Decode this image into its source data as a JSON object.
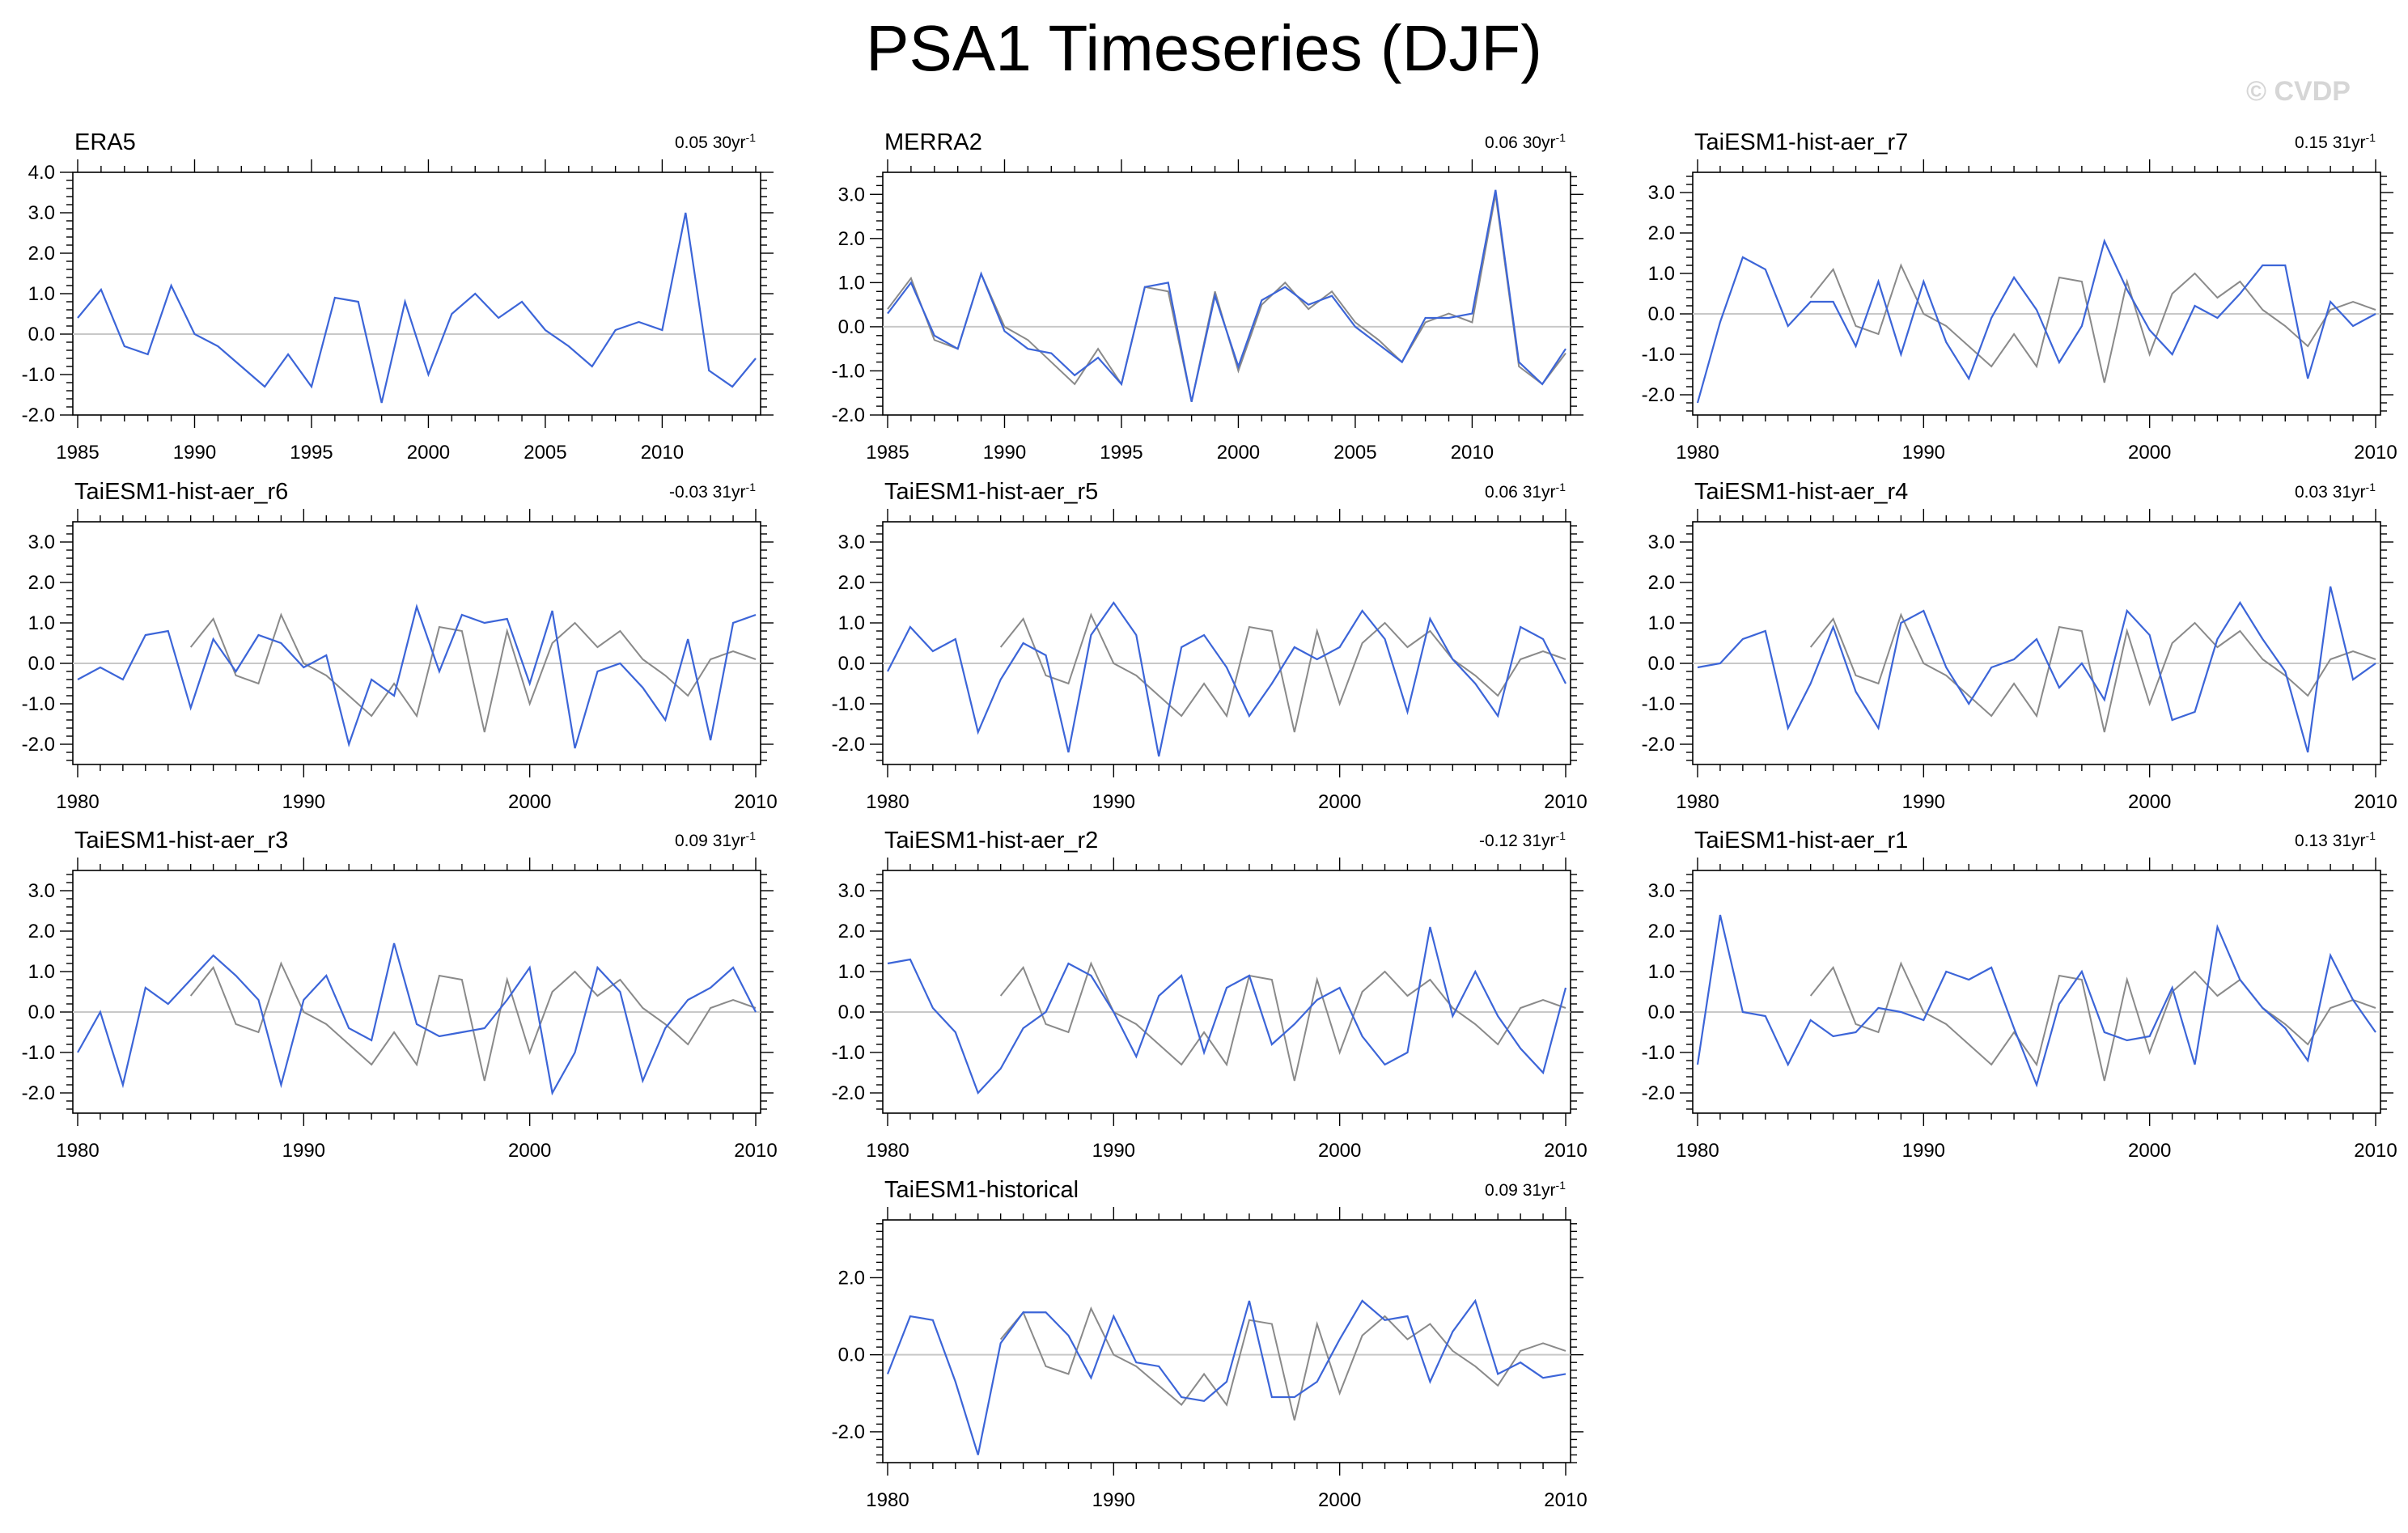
{
  "title": "PSA1 Timeseries (DJF)",
  "watermark": "© CVDP",
  "colors": {
    "model_line": "#3c65d8",
    "obs_line": "#8a8a8a",
    "zero_line": "#c8c8c8",
    "axis": "#000000"
  },
  "reference_series": {
    "name": "ERA5",
    "x": [
      1985,
      1986,
      1987,
      1988,
      1989,
      1990,
      1991,
      1992,
      1993,
      1994,
      1995,
      1996,
      1997,
      1998,
      1999,
      2000,
      2001,
      2002,
      2003,
      2004,
      2005,
      2006,
      2007,
      2008,
      2009,
      2010,
      2011,
      2012,
      2013,
      2014
    ],
    "values": [
      0.4,
      1.1,
      -0.3,
      -0.5,
      1.2,
      0.0,
      -0.3,
      -0.8,
      -1.3,
      -0.5,
      -1.3,
      0.9,
      0.8,
      -1.7,
      0.8,
      -1.0,
      0.5,
      1.0,
      0.4,
      0.8,
      0.1,
      -0.3,
      -0.8,
      0.1,
      0.3,
      0.1,
      3.0,
      -0.9,
      -1.3,
      -0.6
    ]
  },
  "chart_data": [
    {
      "type": "line",
      "title": "ERA5",
      "trend_value": "0.05",
      "trend_period": "30yr",
      "trend_exp": "-1",
      "xlim": [
        1985,
        2014
      ],
      "ylim": [
        -2.0,
        4.0
      ],
      "xticks": [
        1985,
        1990,
        1995,
        2000,
        2005,
        2010
      ],
      "yticks": [
        4.0,
        3.0,
        2.0,
        1.0,
        0.0,
        -1.0,
        -2.0
      ],
      "xtick_labels": [
        "1985",
        "1990",
        "1995",
        "2000",
        "2005",
        "2010"
      ],
      "ytick_labels": [
        "4.0",
        "3.0",
        "2.0",
        "1.0",
        "0.0",
        "-1.0",
        "-2.0"
      ],
      "show_obs": false,
      "x_start": 1985,
      "values": [
        0.4,
        1.1,
        -0.3,
        -0.5,
        1.2,
        0.0,
        -0.3,
        -0.8,
        -1.3,
        -0.5,
        -1.3,
        0.9,
        0.8,
        -1.7,
        0.8,
        -1.0,
        0.5,
        1.0,
        0.4,
        0.8,
        0.1,
        -0.3,
        -0.8,
        0.1,
        0.3,
        0.1,
        3.0,
        -0.9,
        -1.3,
        -0.6
      ]
    },
    {
      "type": "line",
      "title": "MERRA2",
      "trend_value": "0.06",
      "trend_period": "30yr",
      "trend_exp": "-1",
      "xlim": [
        1985,
        2014
      ],
      "ylim": [
        -2.0,
        3.5
      ],
      "xticks": [
        1985,
        1990,
        1995,
        2000,
        2005,
        2010
      ],
      "yticks": [
        3.0,
        2.0,
        1.0,
        0.0,
        -1.0,
        -2.0
      ],
      "xtick_labels": [
        "1985",
        "1990",
        "1995",
        "2000",
        "2005",
        "2010"
      ],
      "ytick_labels": [
        "3.0",
        "2.0",
        "1.0",
        "0.0",
        "-1.0",
        "-2.0"
      ],
      "show_obs": true,
      "x_start": 1985,
      "values": [
        0.3,
        1.0,
        -0.2,
        -0.5,
        1.2,
        -0.1,
        -0.5,
        -0.6,
        -1.1,
        -0.7,
        -1.3,
        0.9,
        1.0,
        -1.7,
        0.7,
        -0.9,
        0.6,
        0.9,
        0.5,
        0.7,
        0.0,
        -0.4,
        -0.8,
        0.2,
        0.2,
        0.3,
        3.1,
        -0.8,
        -1.3,
        -0.5
      ]
    },
    {
      "type": "line",
      "title": "TaiESM1-hist-aer_r7",
      "trend_value": "0.15",
      "trend_period": "31yr",
      "trend_exp": "-1",
      "xlim": [
        1980,
        2010
      ],
      "ylim": [
        -2.5,
        3.5
      ],
      "xticks": [
        1980,
        1990,
        2000,
        2010
      ],
      "yticks": [
        3.0,
        2.0,
        1.0,
        0.0,
        -1.0,
        -2.0
      ],
      "xtick_labels": [
        "1980",
        "1990",
        "2000",
        "2010"
      ],
      "ytick_labels": [
        "3.0",
        "2.0",
        "1.0",
        "0.0",
        "-1.0",
        "-2.0"
      ],
      "show_obs": true,
      "x_start": 1980,
      "values": [
        -2.2,
        -0.2,
        1.4,
        1.1,
        -0.3,
        0.3,
        0.3,
        -0.8,
        0.8,
        -1.0,
        0.8,
        -0.7,
        -1.6,
        -0.1,
        0.9,
        0.1,
        -1.2,
        -0.3,
        1.8,
        0.6,
        -0.4,
        -1.0,
        0.2,
        -0.1,
        0.5,
        1.2,
        1.2,
        -1.6,
        0.3,
        -0.3,
        0.0
      ]
    },
    {
      "type": "line",
      "title": "TaiESM1-hist-aer_r6",
      "trend_value": "-0.03",
      "trend_period": "31yr",
      "trend_exp": "-1",
      "xlim": [
        1980,
        2010
      ],
      "ylim": [
        -2.5,
        3.5
      ],
      "xticks": [
        1980,
        1990,
        2000,
        2010
      ],
      "yticks": [
        3.0,
        2.0,
        1.0,
        0.0,
        -1.0,
        -2.0
      ],
      "xtick_labels": [
        "1980",
        "1990",
        "2000",
        "2010"
      ],
      "ytick_labels": [
        "3.0",
        "2.0",
        "1.0",
        "0.0",
        "-1.0",
        "-2.0"
      ],
      "show_obs": true,
      "x_start": 1980,
      "values": [
        -0.4,
        -0.1,
        -0.4,
        0.7,
        0.8,
        -1.1,
        0.6,
        -0.2,
        0.7,
        0.5,
        -0.1,
        0.2,
        -2.0,
        -0.4,
        -0.8,
        1.4,
        -0.2,
        1.2,
        1.0,
        1.1,
        -0.5,
        1.3,
        -2.1,
        -0.2,
        0.0,
        -0.6,
        -1.4,
        0.6,
        -1.9,
        1.0,
        1.2
      ]
    },
    {
      "type": "line",
      "title": "TaiESM1-hist-aer_r5",
      "trend_value": "0.06",
      "trend_period": "31yr",
      "trend_exp": "-1",
      "xlim": [
        1980,
        2010
      ],
      "ylim": [
        -2.5,
        3.5
      ],
      "xticks": [
        1980,
        1990,
        2000,
        2010
      ],
      "yticks": [
        3.0,
        2.0,
        1.0,
        0.0,
        -1.0,
        -2.0
      ],
      "xtick_labels": [
        "1980",
        "1990",
        "2000",
        "2010"
      ],
      "ytick_labels": [
        "3.0",
        "2.0",
        "1.0",
        "0.0",
        "-1.0",
        "-2.0"
      ],
      "show_obs": true,
      "x_start": 1980,
      "values": [
        -0.2,
        0.9,
        0.3,
        0.6,
        -1.7,
        -0.4,
        0.5,
        0.2,
        -2.2,
        0.7,
        1.5,
        0.7,
        -2.3,
        0.4,
        0.7,
        -0.1,
        -1.3,
        -0.5,
        0.4,
        0.1,
        0.4,
        1.3,
        0.6,
        -1.2,
        1.1,
        0.1,
        -0.5,
        -1.3,
        0.9,
        0.6,
        -0.5
      ]
    },
    {
      "type": "line",
      "title": "TaiESM1-hist-aer_r4",
      "trend_value": "0.03",
      "trend_period": "31yr",
      "trend_exp": "-1",
      "xlim": [
        1980,
        2010
      ],
      "ylim": [
        -2.5,
        3.5
      ],
      "xticks": [
        1980,
        1990,
        2000,
        2010
      ],
      "yticks": [
        3.0,
        2.0,
        1.0,
        0.0,
        -1.0,
        -2.0
      ],
      "xtick_labels": [
        "1980",
        "1990",
        "2000",
        "2010"
      ],
      "ytick_labels": [
        "3.0",
        "2.0",
        "1.0",
        "0.0",
        "-1.0",
        "-2.0"
      ],
      "show_obs": true,
      "x_start": 1980,
      "values": [
        -0.1,
        0.0,
        0.6,
        0.8,
        -1.6,
        -0.5,
        0.9,
        -0.7,
        -1.6,
        1.0,
        1.3,
        -0.1,
        -1.0,
        -0.1,
        0.1,
        0.6,
        -0.6,
        0.0,
        -0.9,
        1.3,
        0.7,
        -1.4,
        -1.2,
        0.6,
        1.5,
        0.6,
        -0.2,
        -2.2,
        1.9,
        -0.4,
        0.0
      ]
    },
    {
      "type": "line",
      "title": "TaiESM1-hist-aer_r3",
      "trend_value": "0.09",
      "trend_period": "31yr",
      "trend_exp": "-1",
      "xlim": [
        1980,
        2010
      ],
      "ylim": [
        -2.5,
        3.5
      ],
      "xticks": [
        1980,
        1990,
        2000,
        2010
      ],
      "yticks": [
        3.0,
        2.0,
        1.0,
        0.0,
        -1.0,
        -2.0
      ],
      "xtick_labels": [
        "1980",
        "1990",
        "2000",
        "2010"
      ],
      "ytick_labels": [
        "3.0",
        "2.0",
        "1.0",
        "0.0",
        "-1.0",
        "-2.0"
      ],
      "show_obs": true,
      "x_start": 1980,
      "values": [
        -1.0,
        0.0,
        -1.8,
        0.6,
        0.2,
        0.8,
        1.4,
        0.9,
        0.3,
        -1.8,
        0.3,
        0.9,
        -0.4,
        -0.7,
        1.7,
        -0.3,
        -0.6,
        -0.5,
        -0.4,
        0.3,
        1.1,
        -2.0,
        -1.0,
        1.1,
        0.5,
        -1.7,
        -0.4,
        0.3,
        0.6,
        1.1,
        0.0
      ]
    },
    {
      "type": "line",
      "title": "TaiESM1-hist-aer_r2",
      "trend_value": "-0.12",
      "trend_period": "31yr",
      "trend_exp": "-1",
      "xlim": [
        1980,
        2010
      ],
      "ylim": [
        -2.5,
        3.5
      ],
      "xticks": [
        1980,
        1990,
        2000,
        2010
      ],
      "yticks": [
        3.0,
        2.0,
        1.0,
        0.0,
        -1.0,
        -2.0
      ],
      "xtick_labels": [
        "1980",
        "1990",
        "2000",
        "2010"
      ],
      "ytick_labels": [
        "3.0",
        "2.0",
        "1.0",
        "0.0",
        "-1.0",
        "-2.0"
      ],
      "show_obs": true,
      "x_start": 1980,
      "values": [
        1.2,
        1.3,
        0.1,
        -0.5,
        -2.0,
        -1.4,
        -0.4,
        0.0,
        1.2,
        0.9,
        0.0,
        -1.1,
        0.4,
        0.9,
        -1.0,
        0.6,
        0.9,
        -0.8,
        -0.3,
        0.3,
        0.6,
        -0.6,
        -1.3,
        -1.0,
        2.1,
        -0.1,
        1.0,
        -0.1,
        -0.9,
        -1.5,
        0.6
      ]
    },
    {
      "type": "line",
      "title": "TaiESM1-hist-aer_r1",
      "trend_value": "0.13",
      "trend_period": "31yr",
      "trend_exp": "-1",
      "xlim": [
        1980,
        2010
      ],
      "ylim": [
        -2.5,
        3.5
      ],
      "xticks": [
        1980,
        1990,
        2000,
        2010
      ],
      "yticks": [
        3.0,
        2.0,
        1.0,
        0.0,
        -1.0,
        -2.0
      ],
      "xtick_labels": [
        "1980",
        "1990",
        "2000",
        "2010"
      ],
      "ytick_labels": [
        "3.0",
        "2.0",
        "1.0",
        "0.0",
        "-1.0",
        "-2.0"
      ],
      "show_obs": true,
      "x_start": 1980,
      "values": [
        -1.3,
        2.4,
        0.0,
        -0.1,
        -1.3,
        -0.2,
        -0.6,
        -0.5,
        0.1,
        0.0,
        -0.2,
        1.0,
        0.8,
        1.1,
        -0.4,
        -1.8,
        0.2,
        1.0,
        -0.5,
        -0.7,
        -0.6,
        0.6,
        -1.3,
        2.1,
        0.8,
        0.1,
        -0.4,
        -1.2,
        1.4,
        0.3,
        -0.5
      ]
    },
    {
      "type": "line",
      "title": "TaiESM1-historical",
      "trend_value": "0.09",
      "trend_period": "31yr",
      "trend_exp": "-1",
      "xlim": [
        1980,
        2010
      ],
      "ylim": [
        -2.8,
        3.5
      ],
      "xticks": [
        1980,
        1990,
        2000,
        2010
      ],
      "yticks": [
        2.0,
        0.0,
        -2.0
      ],
      "xtick_labels": [
        "1980",
        "1990",
        "2000",
        "2010"
      ],
      "ytick_labels": [
        "2.0",
        "0.0",
        "-2.0"
      ],
      "show_obs": true,
      "x_start": 1980,
      "values": [
        -0.5,
        1.0,
        0.9,
        -0.7,
        -2.6,
        0.3,
        1.1,
        1.1,
        0.5,
        -0.6,
        1.0,
        -0.2,
        -0.3,
        -1.1,
        -1.2,
        -0.7,
        1.4,
        -1.1,
        -1.1,
        -0.7,
        0.4,
        1.4,
        0.9,
        1.0,
        -0.7,
        0.6,
        1.4,
        -0.5,
        -0.2,
        -0.6,
        -0.5
      ]
    }
  ]
}
